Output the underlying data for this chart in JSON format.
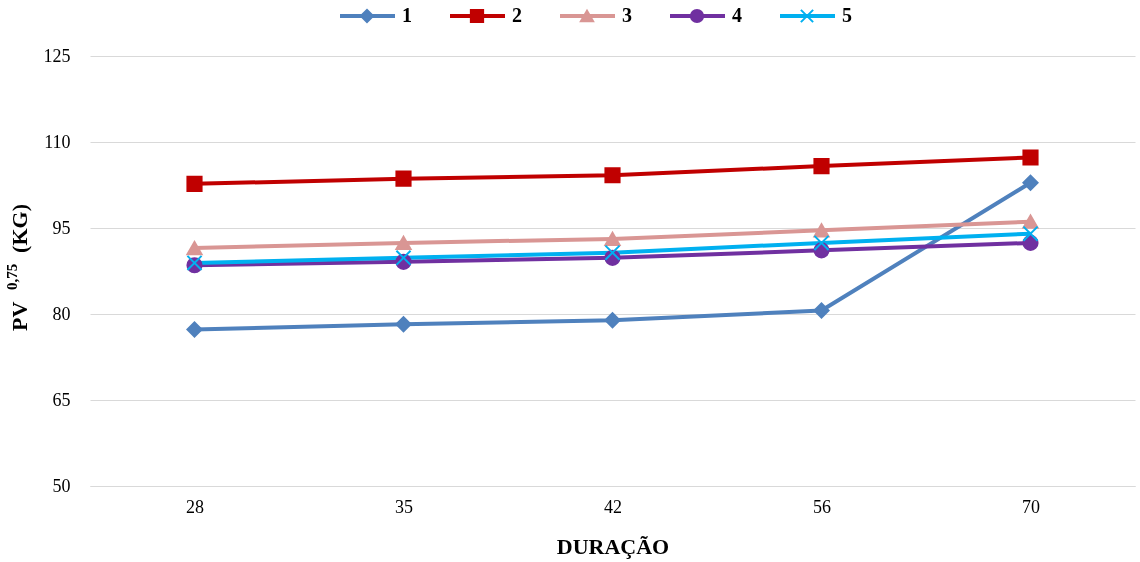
{
  "chart_data": {
    "type": "line",
    "xlabel": "DURAÇÃO",
    "ylabel": "PV $^{0,75}$ (KG)",
    "categories": [
      "28",
      "35",
      "42",
      "56",
      "70"
    ],
    "ylim": [
      50,
      125
    ],
    "yticks": [
      50,
      65,
      80,
      95,
      110,
      125
    ],
    "grid": "y",
    "legend": "top",
    "line_style": "solid",
    "series": [
      {
        "name": "1",
        "color": "#4f81bd",
        "marker": "diamond",
        "values": [
          77.3,
          78.2,
          78.9,
          80.6,
          102.9
        ]
      },
      {
        "name": "2",
        "color": "#c00000",
        "marker": "square",
        "values": [
          102.7,
          103.6,
          104.2,
          105.8,
          107.3
        ]
      },
      {
        "name": "3",
        "color": "#d99694",
        "marker": "triangle",
        "values": [
          91.5,
          92.4,
          93.1,
          94.6,
          96.1
        ]
      },
      {
        "name": "4",
        "color": "#7030a0",
        "marker": "circle",
        "values": [
          88.5,
          89.1,
          89.8,
          91.1,
          92.4
        ]
      },
      {
        "name": "5",
        "color": "#00b0f0",
        "marker": "cross",
        "values": [
          88.9,
          89.8,
          90.7,
          92.4,
          94.0
        ]
      }
    ]
  }
}
